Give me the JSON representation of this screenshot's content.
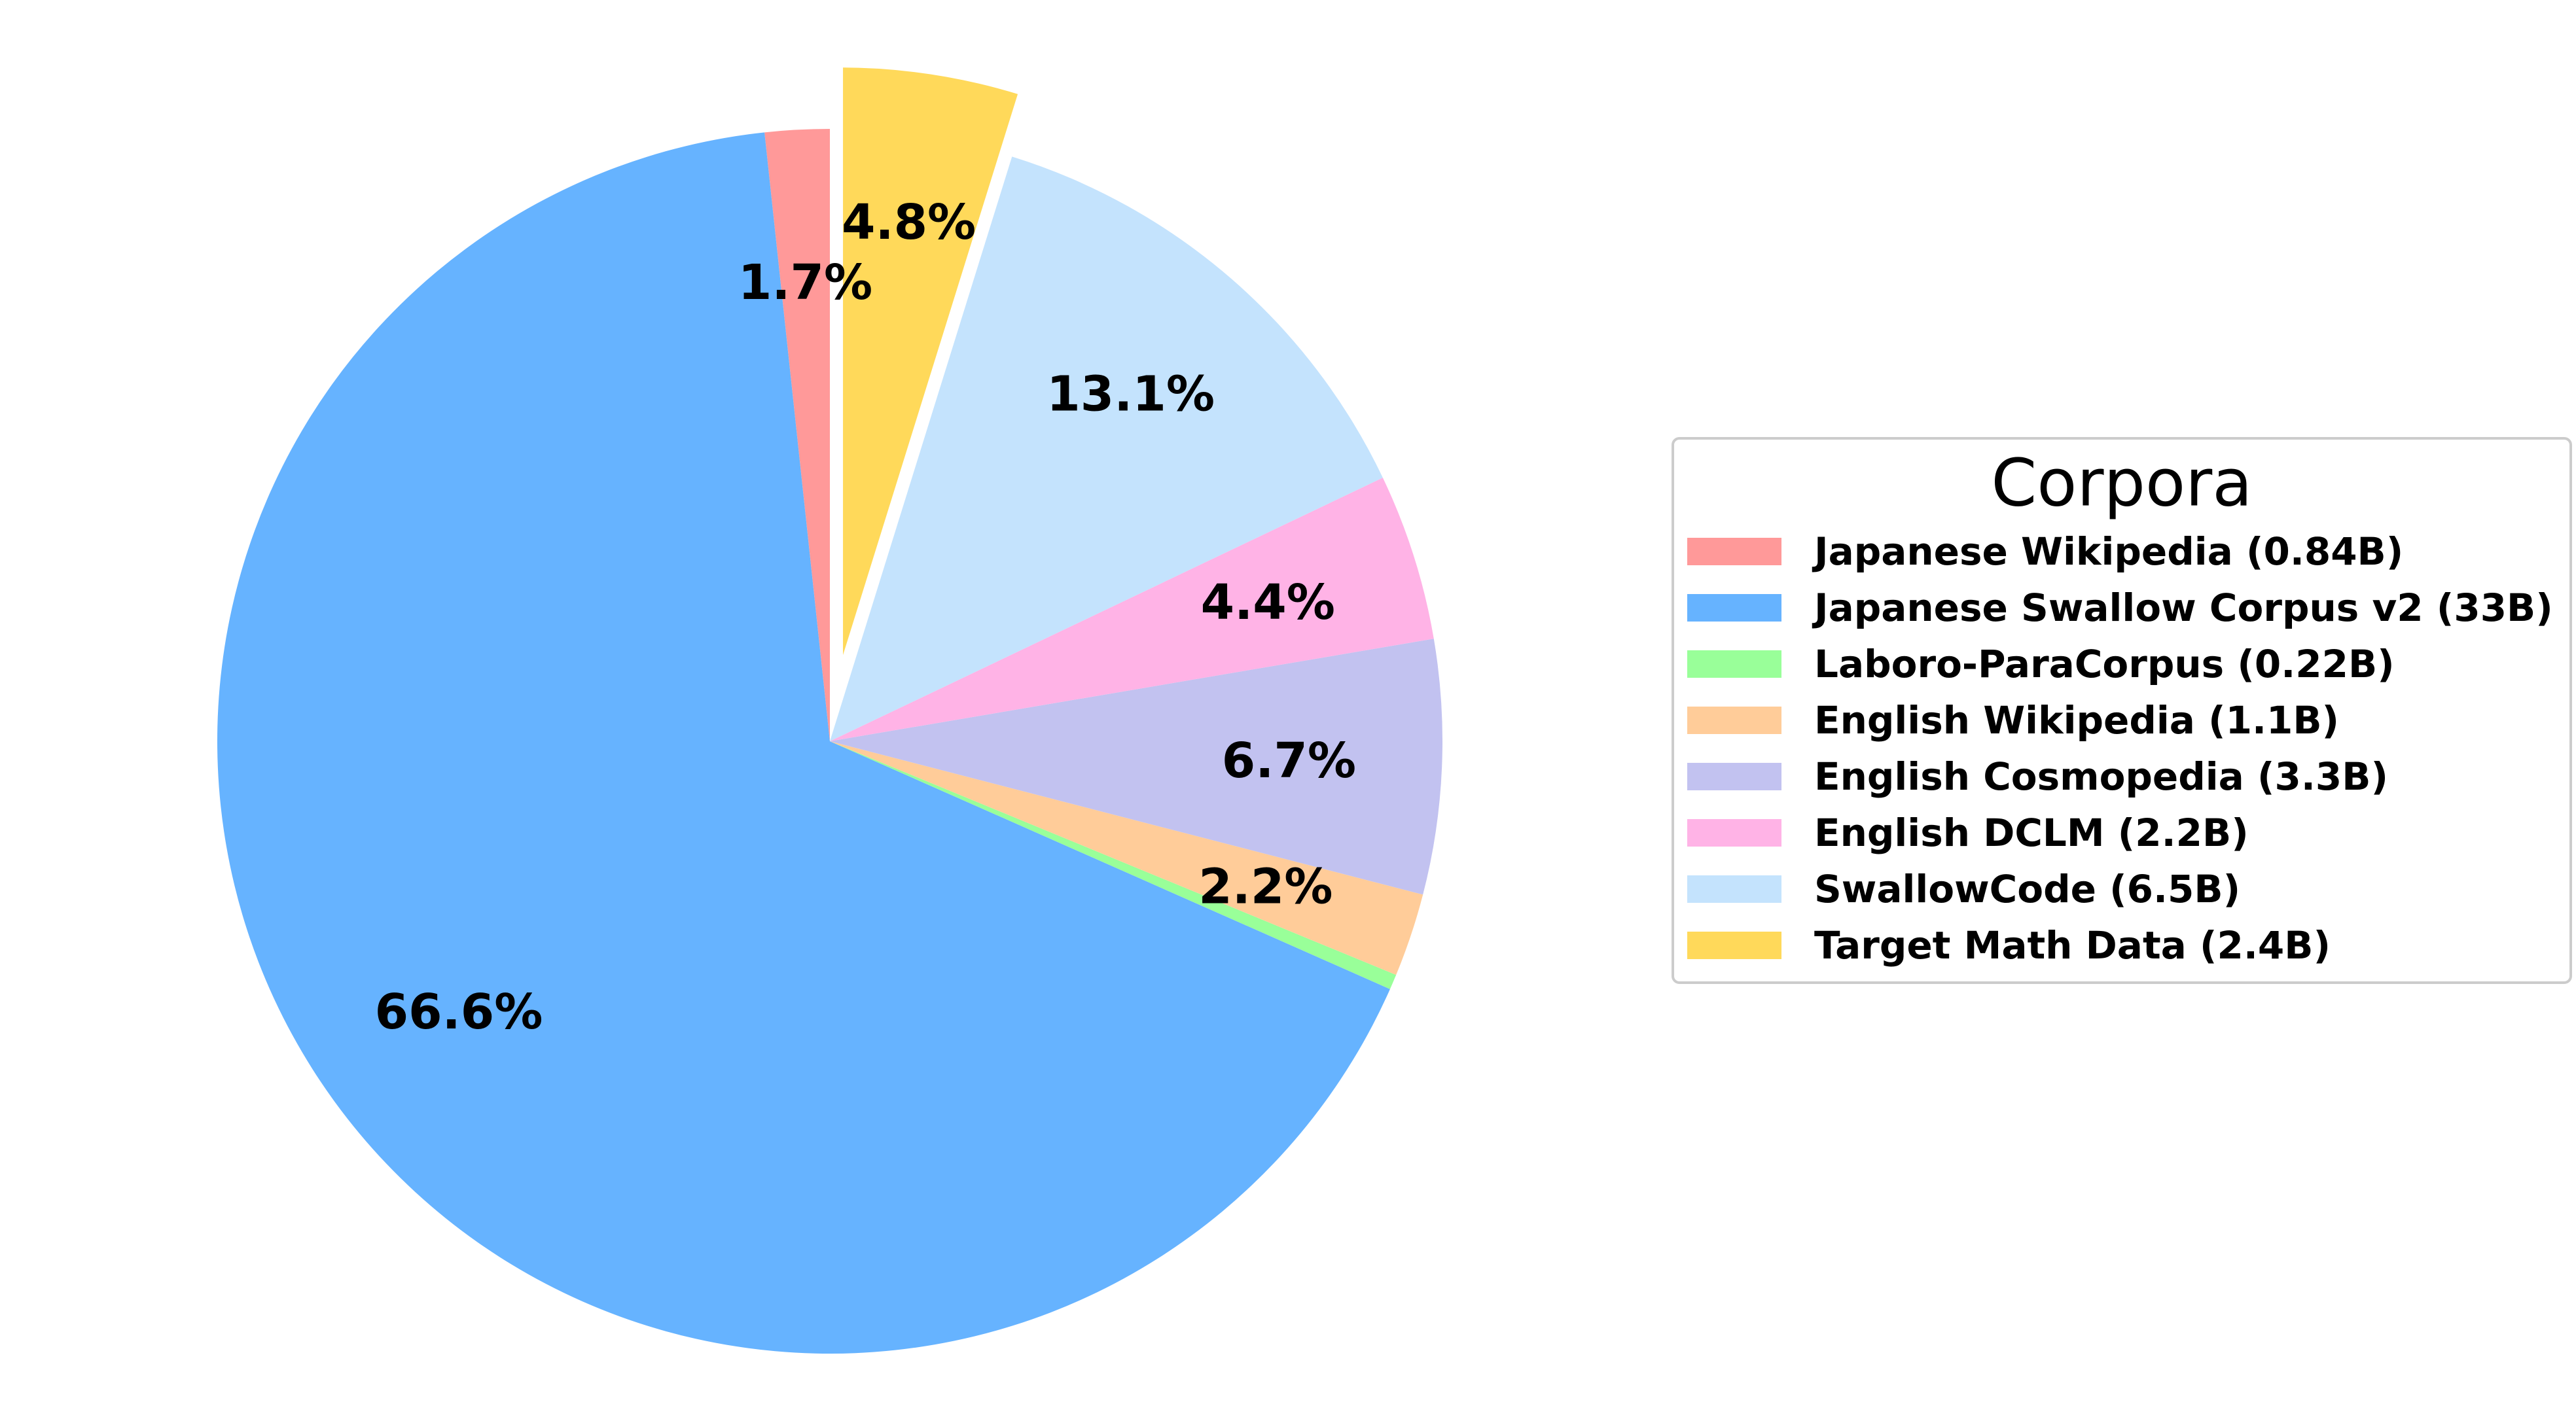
{
  "chart_data": {
    "type": "pie",
    "title": "",
    "legend": {
      "title": "Corpora",
      "placement": "right"
    },
    "slices": [
      {
        "label": "Japanese Wikipedia (0.84B)",
        "value": 1.7,
        "pct_label": "1.7%",
        "color": "#ff9999",
        "exploded": false
      },
      {
        "label": "Japanese Swallow Corpus v2 (33B)",
        "value": 66.6,
        "pct_label": "66.6%",
        "color": "#66b3ff",
        "exploded": false
      },
      {
        "label": "Laboro-ParaCorpus (0.22B)",
        "value": 0.4,
        "pct_label": "",
        "color": "#99ff99",
        "exploded": false
      },
      {
        "label": "English Wikipedia (1.1B)",
        "value": 2.2,
        "pct_label": "2.2%",
        "color": "#ffcc99",
        "exploded": false
      },
      {
        "label": "English Cosmopedia (3.3B)",
        "value": 6.7,
        "pct_label": "6.7%",
        "color": "#c2c2f0",
        "exploded": false
      },
      {
        "label": "English DCLM (2.2B)",
        "value": 4.4,
        "pct_label": "4.4%",
        "color": "#ffb3e6",
        "exploded": false
      },
      {
        "label": "SwallowCode (6.5B)",
        "value": 13.1,
        "pct_label": "13.1%",
        "color": "#c4e3fd",
        "exploded": false
      },
      {
        "label": "Target Math Data (2.4B)",
        "value": 4.8,
        "pct_label": "4.8%",
        "color": "#ffd95a",
        "exploded": true
      }
    ]
  }
}
